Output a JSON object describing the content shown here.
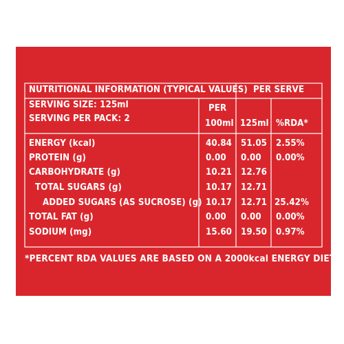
{
  "label": {
    "header_title": "NUTRITIONAL INFORMATION (TYPICAL VALUES)",
    "header_per_serve": "PER SERVE",
    "serving_size": "SERVING SIZE: 125ml",
    "serving_per_pack": "SERVING PER PACK: 2",
    "col_per_line1": "PER",
    "col_per_line2": "100ml",
    "col_125": "125ml",
    "col_rda": "%RDA*",
    "rows": [
      {
        "name": "ENERGY (kcal)",
        "per100": "40.84",
        "per125": "51.05",
        "rda": "2.55%"
      },
      {
        "name": "PROTEIN (g)",
        "per100": "0.00",
        "per125": "0.00",
        "rda": "0.00%"
      },
      {
        "name": "CARBOHYDRATE (g)",
        "per100": "10.21",
        "per125": "12.76",
        "rda": ""
      },
      {
        "name": "TOTAL SUGARS (g)",
        "per100": "10.17",
        "per125": "12.71",
        "rda": ""
      },
      {
        "name": "ADDED SUGARS (AS SUCROSE) (g)",
        "per100": "10.17",
        "per125": "12.71",
        "rda": "25.42%"
      },
      {
        "name": "TOTAL FAT (g)",
        "per100": "0.00",
        "per125": "0.00",
        "rda": "0.00%"
      },
      {
        "name": "SODIUM (mg)",
        "per100": "15.60",
        "per125": "19.50",
        "rda": "0.97%"
      }
    ],
    "footnote": "*PERCENT RDA VALUES ARE BASED ON A 2000kcal ENERGY DIET."
  },
  "colors": {
    "background": "#d9262c",
    "text": "#ffffff"
  }
}
